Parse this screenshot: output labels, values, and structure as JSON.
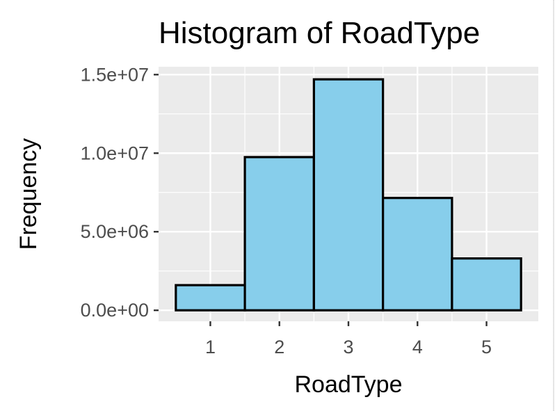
{
  "chart_data": {
    "type": "bar",
    "title": "Histogram of RoadType",
    "xlabel": "RoadType",
    "ylabel": "Frequency",
    "categories": [
      "1",
      "2",
      "3",
      "4",
      "5"
    ],
    "values": [
      1600000,
      9750000,
      14700000,
      7150000,
      3300000
    ],
    "xlim": [
      0.25,
      5.75
    ],
    "ylim": [
      -700000,
      15500000
    ],
    "x_ticks": [
      1,
      2,
      3,
      4,
      5
    ],
    "y_ticks": [
      0,
      5000000,
      10000000,
      15000000
    ],
    "y_tick_labels": [
      "0.0e+00",
      "5.0e+06",
      "1.0e+07",
      "1.5e+07"
    ],
    "grid": true,
    "colors": {
      "bar_fill": "#87CEEB",
      "bar_stroke": "#000000",
      "panel_background": "#EBEBEB",
      "grid": "#FFFFFF"
    }
  }
}
